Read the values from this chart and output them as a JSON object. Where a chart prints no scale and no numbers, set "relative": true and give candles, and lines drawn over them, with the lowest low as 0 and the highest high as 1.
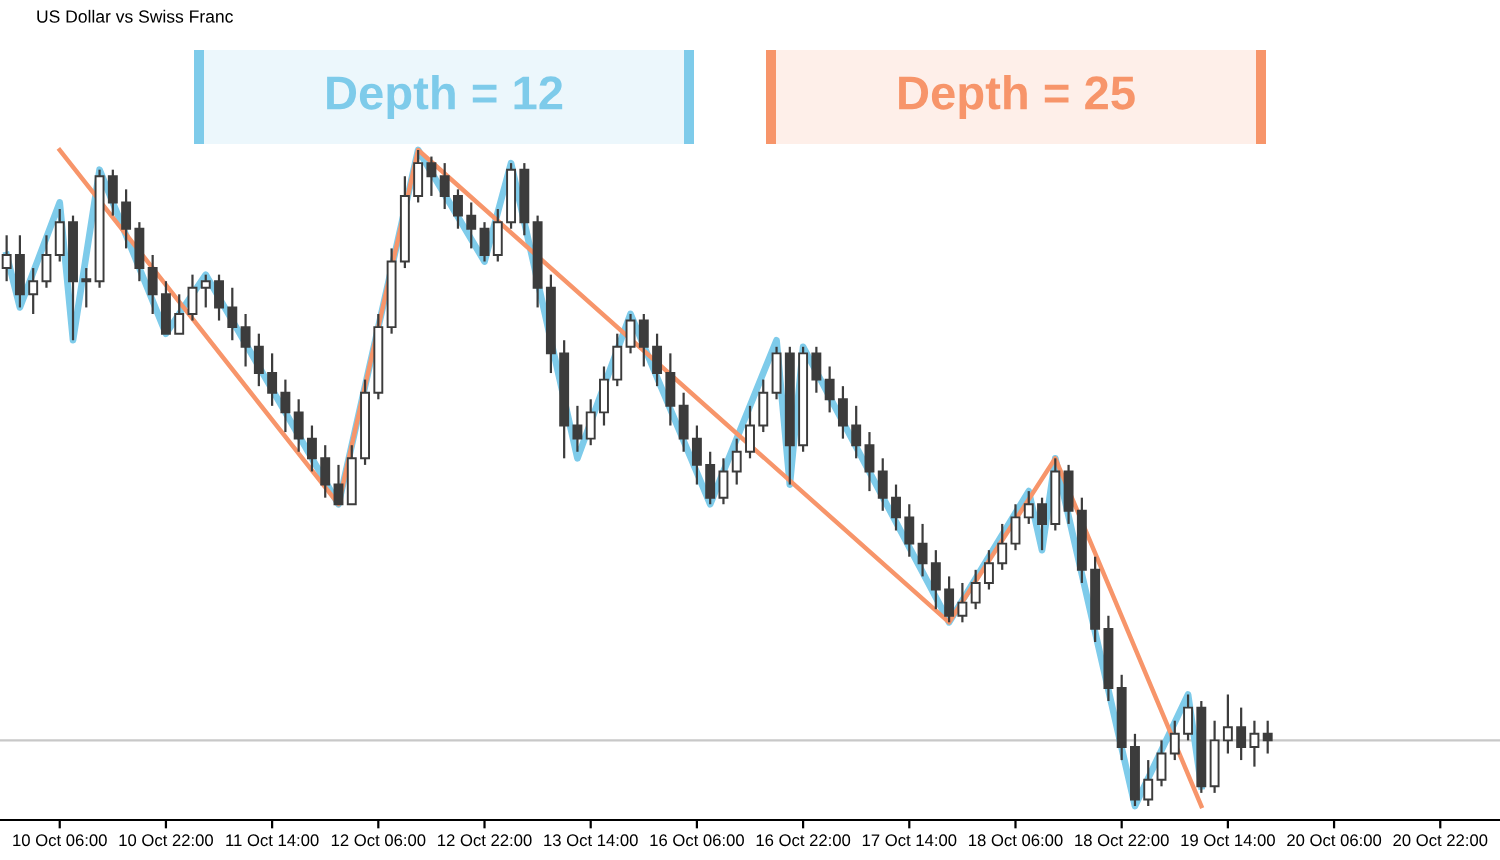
{
  "chart_data": {
    "type": "candlestick",
    "title": "US Dollar vs Swiss Franc",
    "relative": true,
    "color": "#3c3c3c",
    "categories": [
      null,
      null,
      null,
      null,
      "10 Oct 06:00",
      null,
      null,
      null,
      null,
      null,
      null,
      null,
      "10 Oct 22:00",
      null,
      null,
      null,
      null,
      null,
      null,
      null,
      "11 Oct 14:00",
      null,
      null,
      null,
      null,
      null,
      null,
      null,
      "12 Oct 06:00",
      null,
      null,
      null,
      null,
      null,
      null,
      null,
      "12 Oct 22:00",
      null,
      null,
      null,
      null,
      null,
      null,
      null,
      "13 Oct 14:00",
      null,
      null,
      null,
      null,
      null,
      null,
      null,
      "16 Oct 06:00",
      null,
      null,
      null,
      null,
      null,
      null,
      null,
      "16 Oct 22:00",
      null,
      null,
      null,
      null,
      null,
      null,
      null,
      "17 Oct 14:00",
      null,
      null,
      null,
      null,
      null,
      null,
      null,
      "18 Oct 06:00",
      null,
      null,
      null,
      null,
      null,
      null,
      null,
      "18 Oct 22:00",
      null,
      null,
      null,
      null,
      null,
      null,
      null,
      "19 Oct 14:00",
      null,
      null,
      null,
      null,
      null,
      null,
      null,
      "20 Oct 06:00",
      null,
      null,
      null,
      null,
      null,
      null,
      null,
      "20 Oct 22:00",
      null,
      null,
      null,
      null
    ],
    "ohlc": [
      [
        0.82,
        0.87,
        0.8,
        0.84
      ],
      [
        0.84,
        0.87,
        0.76,
        0.78
      ],
      [
        0.78,
        0.82,
        0.75,
        0.8
      ],
      [
        0.8,
        0.87,
        0.79,
        0.84
      ],
      [
        0.84,
        0.91,
        0.83,
        0.89
      ],
      [
        0.89,
        0.9,
        0.71,
        0.8
      ],
      [
        0.8,
        0.82,
        0.76,
        0.8
      ],
      [
        0.8,
        0.97,
        0.79,
        0.96
      ],
      [
        0.96,
        0.97,
        0.9,
        0.92
      ],
      [
        0.92,
        0.94,
        0.85,
        0.88
      ],
      [
        0.88,
        0.89,
        0.8,
        0.82
      ],
      [
        0.82,
        0.84,
        0.75,
        0.78
      ],
      [
        0.78,
        0.8,
        0.72,
        0.72
      ],
      [
        0.72,
        0.78,
        0.72,
        0.75
      ],
      [
        0.75,
        0.81,
        0.74,
        0.79
      ],
      [
        0.79,
        0.81,
        0.76,
        0.8
      ],
      [
        0.8,
        0.81,
        0.74,
        0.76
      ],
      [
        0.76,
        0.79,
        0.71,
        0.73
      ],
      [
        0.73,
        0.75,
        0.67,
        0.7
      ],
      [
        0.7,
        0.72,
        0.64,
        0.66
      ],
      [
        0.66,
        0.69,
        0.61,
        0.63
      ],
      [
        0.63,
        0.65,
        0.57,
        0.6
      ],
      [
        0.6,
        0.62,
        0.54,
        0.56
      ],
      [
        0.56,
        0.58,
        0.51,
        0.53
      ],
      [
        0.53,
        0.55,
        0.47,
        0.49
      ],
      [
        0.49,
        0.52,
        0.46,
        0.46
      ],
      [
        0.46,
        0.55,
        0.46,
        0.53
      ],
      [
        0.53,
        0.65,
        0.52,
        0.63
      ],
      [
        0.63,
        0.75,
        0.62,
        0.73
      ],
      [
        0.73,
        0.85,
        0.72,
        0.83
      ],
      [
        0.83,
        0.96,
        0.82,
        0.93
      ],
      [
        0.93,
        1.0,
        0.92,
        0.98
      ],
      [
        0.98,
        0.99,
        0.93,
        0.96
      ],
      [
        0.96,
        0.98,
        0.91,
        0.93
      ],
      [
        0.93,
        0.94,
        0.88,
        0.9
      ],
      [
        0.9,
        0.92,
        0.85,
        0.88
      ],
      [
        0.88,
        0.89,
        0.83,
        0.84
      ],
      [
        0.84,
        0.91,
        0.83,
        0.89
      ],
      [
        0.89,
        0.98,
        0.88,
        0.97
      ],
      [
        0.97,
        0.98,
        0.87,
        0.89
      ],
      [
        0.89,
        0.9,
        0.76,
        0.79
      ],
      [
        0.79,
        0.81,
        0.66,
        0.69
      ],
      [
        0.69,
        0.71,
        0.53,
        0.58
      ],
      [
        0.58,
        0.61,
        0.54,
        0.56
      ],
      [
        0.56,
        0.62,
        0.55,
        0.6
      ],
      [
        0.6,
        0.67,
        0.58,
        0.65
      ],
      [
        0.65,
        0.72,
        0.64,
        0.7
      ],
      [
        0.7,
        0.75,
        0.69,
        0.74
      ],
      [
        0.74,
        0.75,
        0.67,
        0.7
      ],
      [
        0.7,
        0.72,
        0.64,
        0.66
      ],
      [
        0.66,
        0.69,
        0.58,
        0.61
      ],
      [
        0.61,
        0.63,
        0.54,
        0.56
      ],
      [
        0.56,
        0.58,
        0.49,
        0.52
      ],
      [
        0.52,
        0.54,
        0.46,
        0.47
      ],
      [
        0.47,
        0.53,
        0.46,
        0.51
      ],
      [
        0.51,
        0.56,
        0.49,
        0.54
      ],
      [
        0.54,
        0.61,
        0.53,
        0.58
      ],
      [
        0.58,
        0.65,
        0.57,
        0.63
      ],
      [
        0.63,
        0.7,
        0.62,
        0.69
      ],
      [
        0.69,
        0.7,
        0.49,
        0.55
      ],
      [
        0.55,
        0.7,
        0.54,
        0.69
      ],
      [
        0.69,
        0.7,
        0.63,
        0.65
      ],
      [
        0.65,
        0.67,
        0.6,
        0.62
      ],
      [
        0.62,
        0.64,
        0.56,
        0.58
      ],
      [
        0.58,
        0.61,
        0.53,
        0.55
      ],
      [
        0.55,
        0.57,
        0.48,
        0.51
      ],
      [
        0.51,
        0.53,
        0.45,
        0.47
      ],
      [
        0.47,
        0.49,
        0.42,
        0.44
      ],
      [
        0.44,
        0.46,
        0.38,
        0.4
      ],
      [
        0.4,
        0.43,
        0.35,
        0.37
      ],
      [
        0.37,
        0.39,
        0.3,
        0.33
      ],
      [
        0.33,
        0.35,
        0.28,
        0.29
      ],
      [
        0.29,
        0.34,
        0.28,
        0.31
      ],
      [
        0.31,
        0.36,
        0.3,
        0.34
      ],
      [
        0.34,
        0.39,
        0.33,
        0.37
      ],
      [
        0.37,
        0.43,
        0.36,
        0.4
      ],
      [
        0.4,
        0.46,
        0.39,
        0.44
      ],
      [
        0.44,
        0.48,
        0.43,
        0.46
      ],
      [
        0.46,
        0.47,
        0.39,
        0.43
      ],
      [
        0.43,
        0.53,
        0.42,
        0.51
      ],
      [
        0.51,
        0.52,
        0.43,
        0.45
      ],
      [
        0.45,
        0.47,
        0.34,
        0.36
      ],
      [
        0.36,
        0.38,
        0.25,
        0.27
      ],
      [
        0.27,
        0.29,
        0.16,
        0.18
      ],
      [
        0.18,
        0.2,
        0.07,
        0.09
      ],
      [
        0.09,
        0.11,
        0.0,
        0.01
      ],
      [
        0.01,
        0.07,
        0.0,
        0.04
      ],
      [
        0.04,
        0.1,
        0.03,
        0.08
      ],
      [
        0.08,
        0.13,
        0.07,
        0.11
      ],
      [
        0.11,
        0.17,
        0.1,
        0.15
      ],
      [
        0.15,
        0.16,
        0.02,
        0.03
      ],
      [
        0.03,
        0.13,
        0.02,
        0.1
      ],
      [
        0.1,
        0.17,
        0.08,
        0.12
      ],
      [
        0.12,
        0.15,
        0.07,
        0.09
      ],
      [
        0.09,
        0.13,
        0.06,
        0.11
      ],
      [
        0.11,
        0.13,
        0.08,
        0.1
      ],
      null,
      null,
      null,
      null,
      null,
      null,
      null,
      null,
      null,
      null,
      null,
      null,
      null,
      null,
      null,
      null,
      null
    ],
    "series": [
      {
        "name": "Depth = 12",
        "type": "line",
        "color": "#7ecbea",
        "values": [
          0.84,
          0.76,
          null,
          null,
          0.92,
          0.71,
          null,
          0.97,
          null,
          null,
          null,
          null,
          0.72,
          null,
          null,
          0.81,
          null,
          null,
          null,
          null,
          null,
          null,
          null,
          null,
          null,
          0.46,
          null,
          null,
          null,
          null,
          null,
          1.0,
          null,
          null,
          null,
          null,
          0.83,
          null,
          0.98,
          null,
          null,
          null,
          null,
          0.53,
          null,
          null,
          null,
          0.75,
          null,
          null,
          null,
          null,
          null,
          0.46,
          null,
          null,
          null,
          null,
          0.71,
          0.49,
          0.7,
          null,
          null,
          null,
          null,
          null,
          null,
          null,
          null,
          null,
          null,
          0.28,
          null,
          null,
          null,
          null,
          null,
          0.48,
          0.39,
          0.53,
          null,
          null,
          null,
          null,
          null,
          0.0,
          null,
          null,
          null,
          0.17,
          0.03,
          null,
          null,
          null,
          null,
          null,
          null,
          null,
          null,
          null,
          null,
          null,
          null,
          null,
          null,
          null,
          null,
          null,
          null,
          null,
          null,
          null,
          null
        ]
      },
      {
        "name": "Depth = 25",
        "type": "line",
        "color": "#f7956a",
        "values": [
          null,
          null,
          null,
          null,
          1.0,
          null,
          null,
          null,
          null,
          null,
          null,
          null,
          null,
          null,
          null,
          null,
          null,
          null,
          null,
          null,
          null,
          null,
          null,
          null,
          null,
          0.46,
          null,
          null,
          null,
          null,
          null,
          1.0,
          null,
          null,
          null,
          null,
          null,
          null,
          null,
          null,
          null,
          null,
          null,
          null,
          null,
          null,
          null,
          null,
          null,
          null,
          null,
          null,
          null,
          null,
          null,
          null,
          null,
          null,
          null,
          null,
          null,
          null,
          null,
          null,
          null,
          null,
          null,
          null,
          null,
          null,
          null,
          0.28,
          null,
          null,
          null,
          null,
          null,
          null,
          null,
          0.53,
          null,
          null,
          null,
          null,
          null,
          null,
          null,
          null,
          null,
          null,
          0.0,
          null,
          null,
          null,
          null,
          null,
          null,
          null,
          null,
          null,
          null,
          null,
          null,
          null,
          null,
          null,
          null,
          null,
          null,
          null,
          null,
          null,
          null
        ]
      }
    ],
    "ref_lines": [
      {
        "axis": "y",
        "value": 0.1,
        "color": "#c8c8c8"
      }
    ],
    "legend": "top",
    "grid": false
  }
}
